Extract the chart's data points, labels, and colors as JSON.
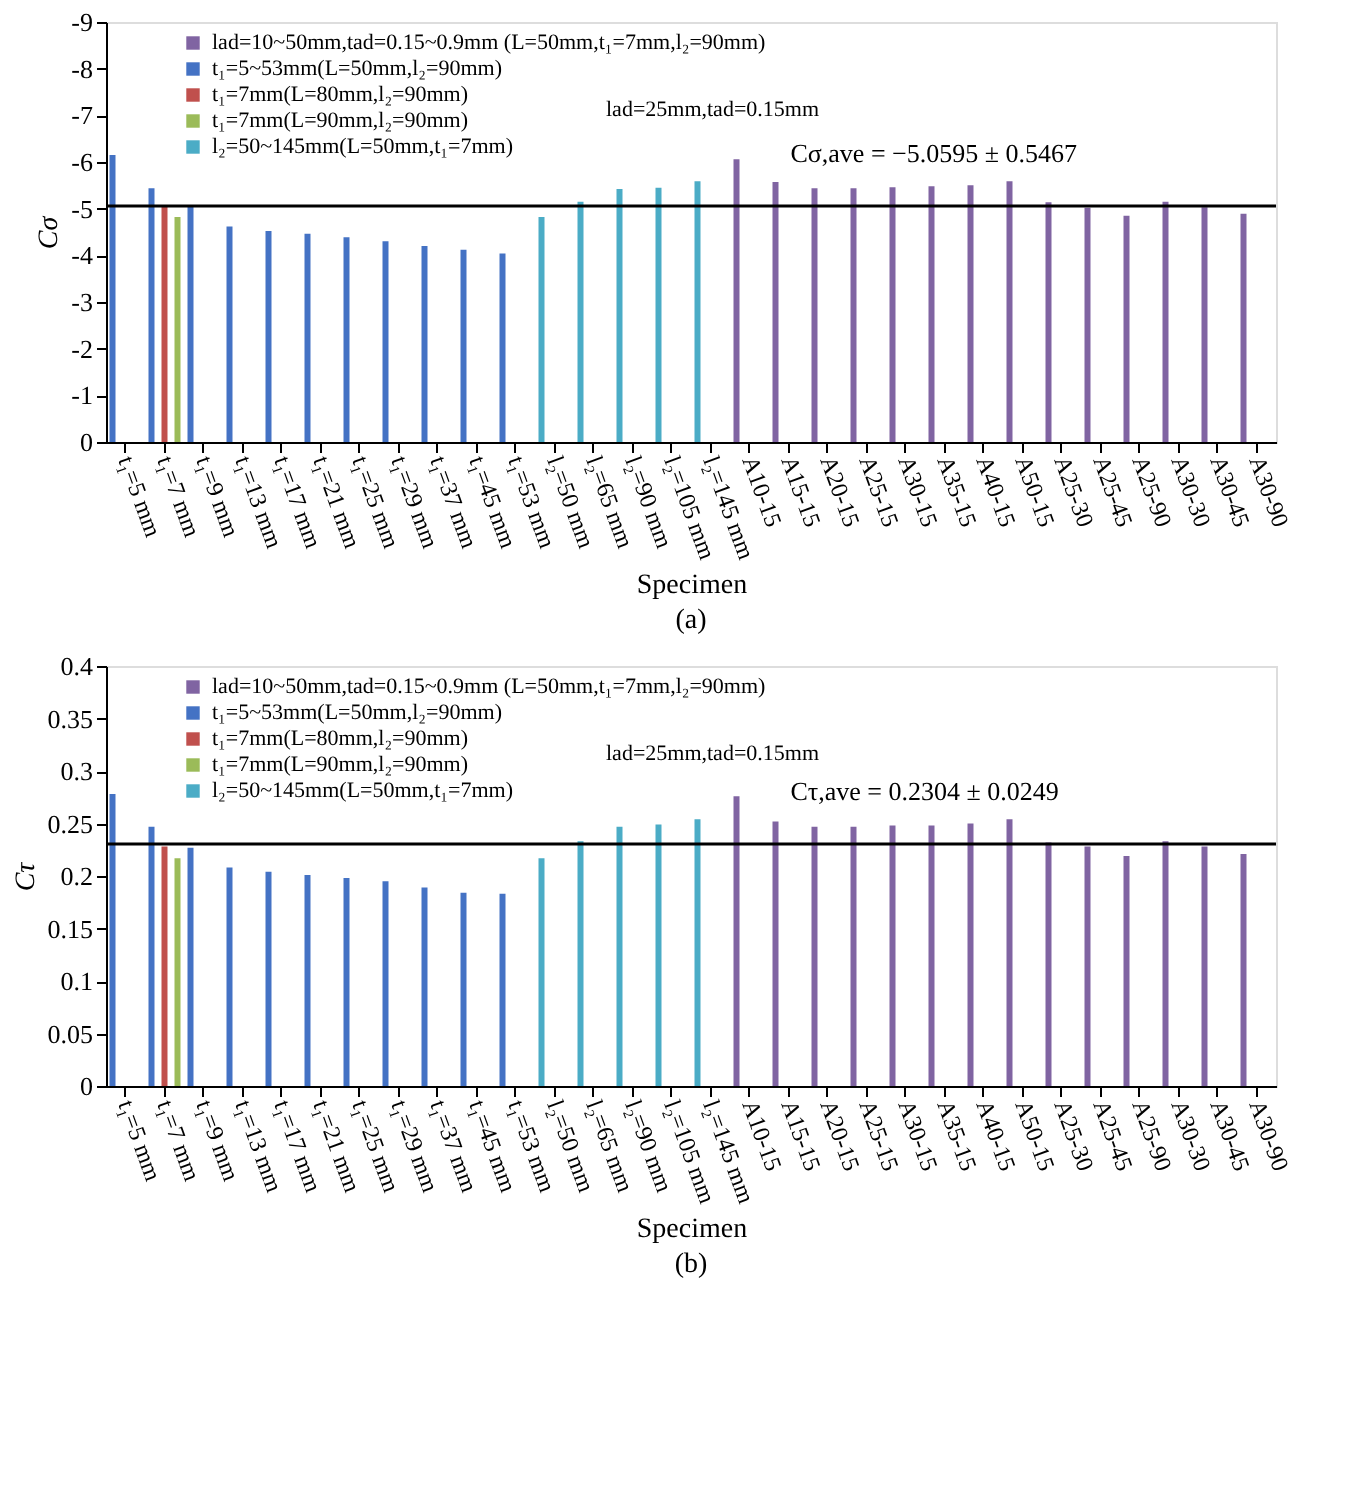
{
  "chart_data": [
    {
      "type": "bar",
      "title": "(a)",
      "xlabel": "Specimen",
      "ylabel": "Cσ",
      "categories": [
        "t₁=5 mm",
        "t₁=7 mm",
        "t₁=9 mm",
        "t₁=13 mm",
        "t₁=17 mm",
        "t₁=21 mm",
        "t₁=25 mm",
        "t₁=29 mm",
        "t₁=37 mm",
        "t₁=45 mm",
        "t₁=53 mm",
        "l₂=50 mm",
        "l₂=65 mm",
        "l₂=90 mm",
        "l₂=105 mm",
        "l₂=145 mm",
        "A10-15",
        "A15-15",
        "A20-15",
        "A25-15",
        "A30-15",
        "A35-15",
        "A40-15",
        "A50-15",
        "A25-30",
        "A25-45",
        "A25-90",
        "A30-30",
        "A30-45",
        "A30-90"
      ],
      "series": [
        {
          "name": "lad=10~50mm,tad=0.15~0.9mm (L=50mm,t₁=7mm,l₂=90mm)",
          "color": "#8064a2",
          "values": [
            null,
            null,
            null,
            null,
            null,
            null,
            null,
            null,
            null,
            null,
            null,
            null,
            null,
            null,
            null,
            null,
            -6.06,
            -5.57,
            -5.44,
            -5.44,
            -5.46,
            -5.48,
            -5.5,
            -5.59,
            -5.14,
            -5.02,
            -4.85,
            -5.15,
            -5.03,
            -4.89
          ]
        },
        {
          "name": "t₁=5~53mm(L=50mm,l₂=90mm)",
          "color": "#4472c4",
          "values": [
            -6.15,
            -5.44,
            -5.05,
            -4.62,
            -4.52,
            -4.46,
            -4.39,
            -4.3,
            -4.2,
            -4.12,
            -4.04,
            null,
            null,
            null,
            null,
            null,
            null,
            null,
            null,
            null,
            null,
            null,
            null,
            null,
            null,
            null,
            null,
            null,
            null,
            null
          ]
        },
        {
          "name": "t₁=7mm(L=80mm,l₂=90mm)",
          "color": "#c0504d",
          "values": [
            null,
            -5.08,
            null,
            null,
            null,
            null,
            null,
            null,
            null,
            null,
            null,
            null,
            null,
            null,
            null,
            null,
            null,
            null,
            null,
            null,
            null,
            null,
            null,
            null,
            null,
            null,
            null,
            null,
            null,
            null
          ]
        },
        {
          "name": "t₁=7mm(L=90mm,l₂=90mm)",
          "color": "#9bbb59",
          "values": [
            null,
            -4.82,
            null,
            null,
            null,
            null,
            null,
            null,
            null,
            null,
            null,
            null,
            null,
            null,
            null,
            null,
            null,
            null,
            null,
            null,
            null,
            null,
            null,
            null,
            null,
            null,
            null,
            null,
            null,
            null
          ]
        },
        {
          "name": "l₂=50~145mm(L=50mm,t₁=7mm)",
          "color": "#4bacc6",
          "values": [
            null,
            null,
            null,
            null,
            null,
            null,
            null,
            null,
            null,
            null,
            null,
            -4.82,
            -5.15,
            -5.42,
            -5.45,
            -5.59,
            null,
            null,
            null,
            null,
            null,
            null,
            null,
            null,
            null,
            null,
            null,
            null,
            null,
            null
          ]
        }
      ],
      "ylim": [
        0,
        -9
      ],
      "yticks": [
        0,
        -1,
        -2,
        -3,
        -4,
        -5,
        -6,
        -7,
        -8,
        -9
      ],
      "grid": false,
      "legend": "top left",
      "ref_lines": [
        {
          "axis": "y",
          "value": -5.0595,
          "label": "Cσ,ave = −5.0595 ± 0.5467"
        }
      ],
      "annotations": [
        "lad=25mm,tad=0.15mm"
      ]
    },
    {
      "type": "bar",
      "title": "(b)",
      "xlabel": "Specimen",
      "ylabel": "Cτ",
      "categories": [
        "t₁=5 mm",
        "t₁=7 mm",
        "t₁=9 mm",
        "t₁=13 mm",
        "t₁=17 mm",
        "t₁=21 mm",
        "t₁=25 mm",
        "t₁=29 mm",
        "t₁=37 mm",
        "t₁=45 mm",
        "t₁=53 mm",
        "l₂=50 mm",
        "l₂=65 mm",
        "l₂=90 mm",
        "l₂=105 mm",
        "l₂=145 mm",
        "A10-15",
        "A15-15",
        "A20-15",
        "A25-15",
        "A30-15",
        "A35-15",
        "A40-15",
        "A50-15",
        "A25-30",
        "A25-45",
        "A25-90",
        "A30-30",
        "A30-45",
        "A30-90"
      ],
      "series": [
        {
          "name": "lad=10~50mm,tad=0.15~0.9mm (L=50mm,t₁=7mm,l₂=90mm)",
          "color": "#8064a2",
          "values": [
            null,
            null,
            null,
            null,
            null,
            null,
            null,
            null,
            null,
            null,
            null,
            null,
            null,
            null,
            null,
            null,
            0.276,
            0.252,
            0.247,
            0.247,
            0.248,
            0.248,
            0.25,
            0.254,
            0.232,
            0.228,
            0.219,
            0.233,
            0.228,
            0.221
          ]
        },
        {
          "name": "t₁=5~53mm(L=50mm,l₂=90mm)",
          "color": "#4472c4",
          "values": [
            0.278,
            0.247,
            0.227,
            0.208,
            0.204,
            0.201,
            0.198,
            0.195,
            0.189,
            0.184,
            0.183,
            null,
            null,
            null,
            null,
            null,
            null,
            null,
            null,
            null,
            null,
            null,
            null,
            null,
            null,
            null,
            null,
            null,
            null,
            null
          ]
        },
        {
          "name": "t₁=7mm(L=80mm,l₂=90mm)",
          "color": "#c0504d",
          "values": [
            null,
            0.228,
            null,
            null,
            null,
            null,
            null,
            null,
            null,
            null,
            null,
            null,
            null,
            null,
            null,
            null,
            null,
            null,
            null,
            null,
            null,
            null,
            null,
            null,
            null,
            null,
            null,
            null,
            null,
            null
          ]
        },
        {
          "name": "t₁=7mm(L=90mm,l₂=90mm)",
          "color": "#9bbb59",
          "values": [
            null,
            0.217,
            null,
            null,
            null,
            null,
            null,
            null,
            null,
            null,
            null,
            null,
            null,
            null,
            null,
            null,
            null,
            null,
            null,
            null,
            null,
            null,
            null,
            null,
            null,
            null,
            null,
            null,
            null,
            null
          ]
        },
        {
          "name": "l₂=50~145mm(L=50mm,t₁=7mm)",
          "color": "#4bacc6",
          "values": [
            null,
            null,
            null,
            null,
            null,
            null,
            null,
            null,
            null,
            null,
            null,
            0.217,
            0.233,
            0.247,
            0.249,
            0.254,
            null,
            null,
            null,
            null,
            null,
            null,
            null,
            null,
            null,
            null,
            null,
            null,
            null,
            null
          ]
        }
      ],
      "ylim": [
        0,
        0.4
      ],
      "yticks": [
        0,
        0.05,
        0.1,
        0.15,
        0.2,
        0.25,
        0.3,
        0.35,
        0.4
      ],
      "grid": false,
      "legend": "top left",
      "ref_lines": [
        {
          "axis": "y",
          "value": 0.2304,
          "label": "Cτ,ave = 0.2304 ± 0.0249"
        }
      ],
      "annotations": [
        "lad=25mm,tad=0.15mm"
      ]
    }
  ]
}
